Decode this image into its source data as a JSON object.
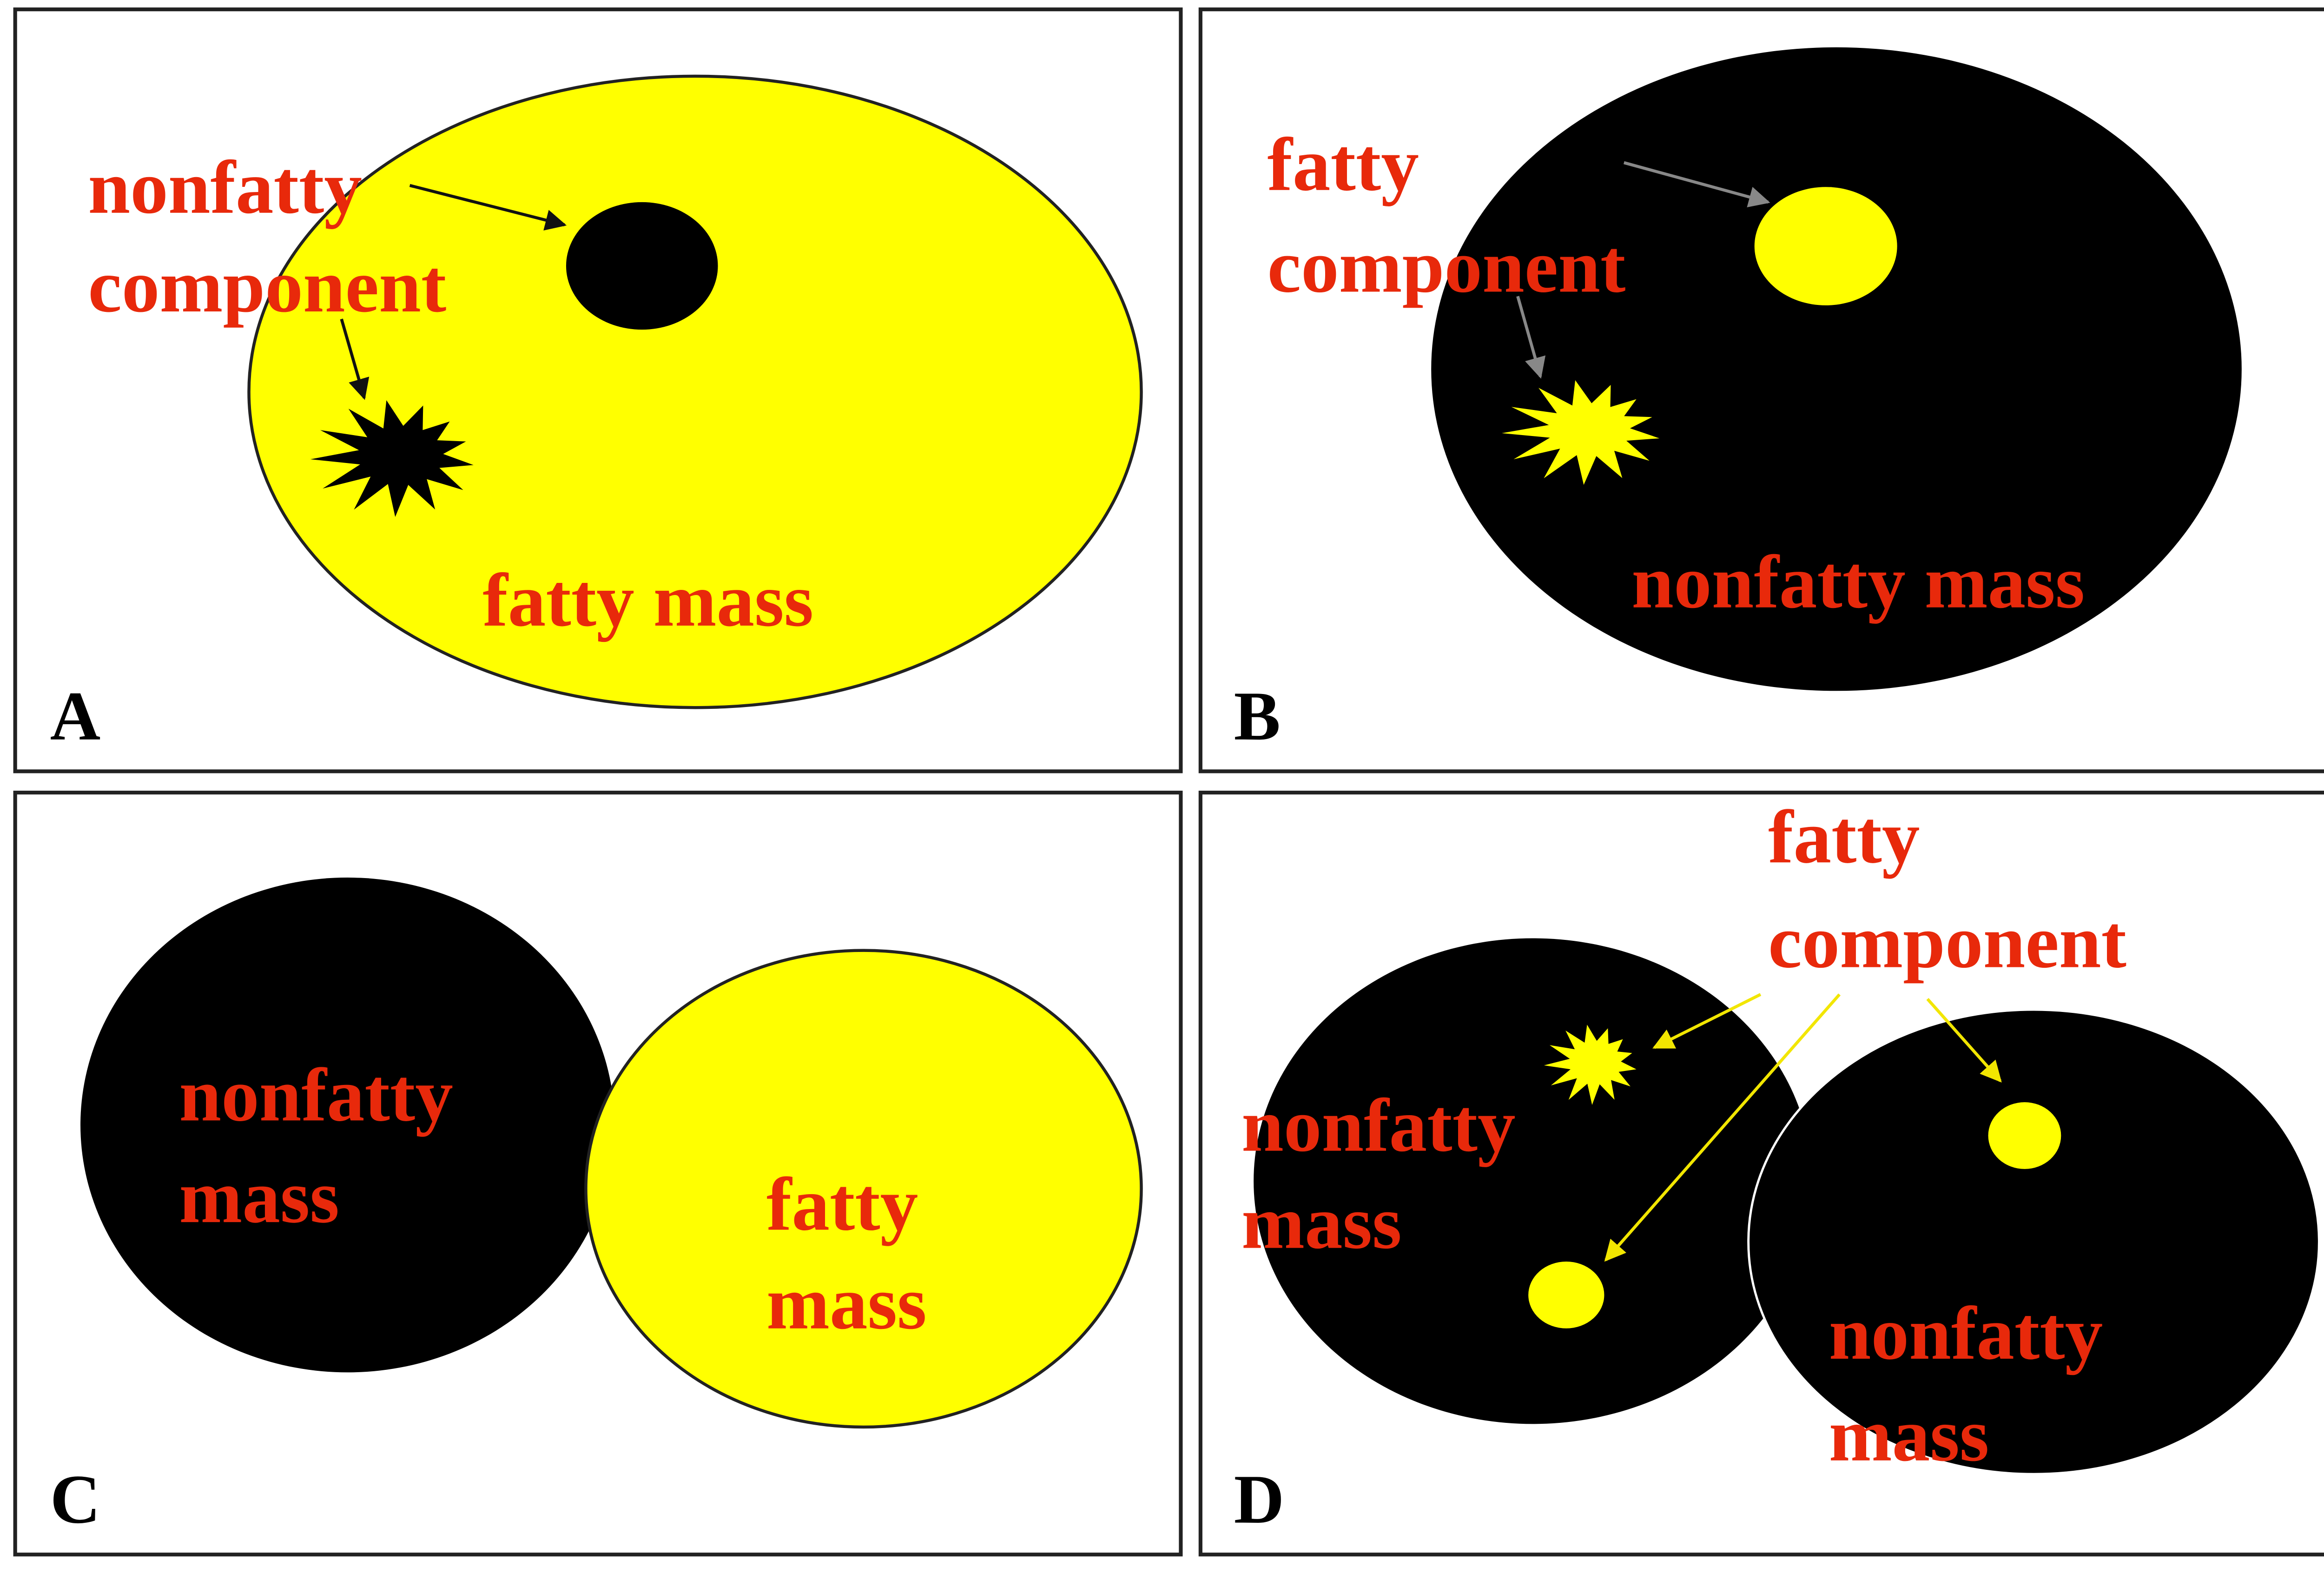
{
  "panels": [
    {
      "letter": "A",
      "texts": [
        "nonfatty",
        "component",
        "fatty mass"
      ]
    },
    {
      "letter": "B",
      "texts": [
        "fatty",
        "component",
        "nonfatty mass"
      ]
    },
    {
      "letter": "C",
      "texts": [
        "nonfatty",
        "mass",
        "fatty",
        "mass"
      ]
    },
    {
      "letter": "D",
      "texts": [
        "fatty",
        "component",
        "nonfatty",
        "mass",
        "nonfatty",
        "mass"
      ]
    }
  ]
}
